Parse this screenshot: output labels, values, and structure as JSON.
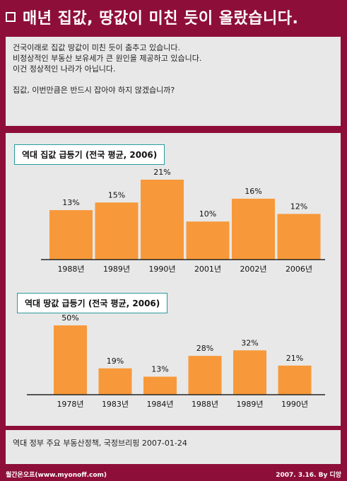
{
  "header": {
    "title": "매년 집값, 땅값이 미친 듯이 올랐습니다."
  },
  "intro": {
    "line1": "건국이래로 집값 땅값이 미친 듯이 춤추고 있습니다.",
    "line2": "비정상적인 부동산 보유세가 큰 원인을 제공하고 있습니다.",
    "line3": "이건 정상적인 나라가 아닙니다.",
    "line4": "집값, 이번만큼은 반드시 잡아야 하지 않겠습니까?"
  },
  "source": "역대 정부 주요 부동산정책, 국정브리핑 2007-01-24",
  "footer": {
    "left": "월간온오프(www.myonoff.com)",
    "right": "2007. 3.16. By 디앙"
  },
  "colors": {
    "background": "#8e0e3a",
    "panel": "#e8e8e8",
    "bar": "#f7993a",
    "title_border": "#2a9a9a"
  },
  "chart_data": [
    {
      "type": "bar",
      "title": "역대 집값 급등기 (전국 평균, 2006)",
      "categories": [
        "1988년",
        "1989년",
        "1990년",
        "2001년",
        "2002년",
        "2006년"
      ],
      "values": [
        13,
        15,
        21,
        10,
        16,
        12
      ],
      "value_labels": [
        "13%",
        "15%",
        "21%",
        "10%",
        "16%",
        "12%"
      ],
      "ylim": [
        0,
        21
      ]
    },
    {
      "type": "bar",
      "title": "역대 땅값 급등기 (전국 평균, 2006)",
      "categories": [
        "1978년",
        "1983년",
        "1984년",
        "1988년",
        "1989년",
        "1990년"
      ],
      "values": [
        50,
        19,
        13,
        28,
        32,
        21
      ],
      "value_labels": [
        "50%",
        "19%",
        "13%",
        "28%",
        "32%",
        "21%"
      ],
      "ylim": [
        0,
        50
      ]
    }
  ]
}
